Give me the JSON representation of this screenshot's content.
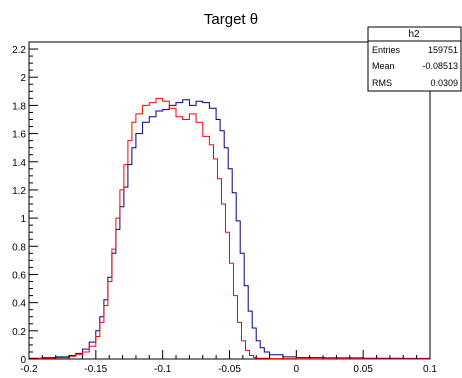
{
  "chart_data": {
    "type": "line",
    "title": "Target θ",
    "xlabel": "",
    "ylabel": "",
    "xlim": [
      -0.2,
      0.1
    ],
    "ylim": [
      0,
      2.25
    ],
    "grid": false,
    "legend": "none",
    "x_ticks": [
      -0.2,
      -0.15,
      -0.1,
      -0.05,
      0,
      0.05,
      0.1
    ],
    "x_tick_labels": [
      "-0.2",
      "-0.15",
      "-0.1",
      "-0.05",
      "0",
      "0.05",
      "0.1"
    ],
    "y_ticks": [
      0,
      0.2,
      0.4,
      0.6,
      0.8,
      1,
      1.2,
      1.4,
      1.6,
      1.8,
      2,
      2.2
    ],
    "y_tick_labels": [
      "0",
      "0.2",
      "0.4",
      "0.6",
      "0.8",
      "1",
      "1.2",
      "1.4",
      "1.6",
      "1.8",
      "2",
      "2.2"
    ],
    "stats_box": {
      "name": "h2",
      "rows": [
        {
          "label": "Entries",
          "value": "159751"
        },
        {
          "label": "Mean",
          "value": "-0.08513"
        },
        {
          "label": "RMS",
          "value": "0.0309"
        }
      ]
    },
    "series": [
      {
        "color": "#00008b",
        "x": [
          -0.2,
          -0.19,
          -0.18,
          -0.17,
          -0.165,
          -0.16,
          -0.155,
          -0.15,
          -0.147,
          -0.144,
          -0.141,
          -0.138,
          -0.135,
          -0.132,
          -0.129,
          -0.126,
          -0.123,
          -0.12,
          -0.115,
          -0.11,
          -0.105,
          -0.1,
          -0.095,
          -0.09,
          -0.085,
          -0.08,
          -0.075,
          -0.07,
          -0.065,
          -0.06,
          -0.057,
          -0.054,
          -0.051,
          -0.048,
          -0.045,
          -0.042,
          -0.039,
          -0.036,
          -0.033,
          -0.03,
          -0.027,
          -0.024,
          -0.02,
          -0.01,
          0,
          0.02,
          0.05,
          0.08,
          0.1
        ],
        "y": [
          0.005,
          0.01,
          0.015,
          0.025,
          0.04,
          0.07,
          0.12,
          0.2,
          0.3,
          0.42,
          0.58,
          0.75,
          0.92,
          1.08,
          1.22,
          1.38,
          1.5,
          1.6,
          1.68,
          1.72,
          1.76,
          1.77,
          1.8,
          1.82,
          1.84,
          1.8,
          1.83,
          1.82,
          1.78,
          1.7,
          1.62,
          1.5,
          1.35,
          1.18,
          0.98,
          0.75,
          0.52,
          0.34,
          0.22,
          0.13,
          0.08,
          0.05,
          0.03,
          0.015,
          0.01,
          0.008,
          0.006,
          0.004,
          0.003
        ]
      },
      {
        "color": "#ff0000",
        "x": [
          -0.2,
          -0.19,
          -0.18,
          -0.17,
          -0.165,
          -0.16,
          -0.155,
          -0.15,
          -0.147,
          -0.144,
          -0.141,
          -0.138,
          -0.135,
          -0.132,
          -0.129,
          -0.126,
          -0.123,
          -0.12,
          -0.115,
          -0.11,
          -0.105,
          -0.1,
          -0.095,
          -0.09,
          -0.085,
          -0.08,
          -0.075,
          -0.07,
          -0.065,
          -0.062,
          -0.059,
          -0.056,
          -0.053,
          -0.05,
          -0.047,
          -0.044,
          -0.041,
          -0.038,
          -0.035,
          -0.032,
          -0.03,
          -0.02,
          0,
          0.05,
          0.1
        ],
        "y": [
          0.003,
          0.006,
          0.01,
          0.02,
          0.03,
          0.05,
          0.09,
          0.16,
          0.26,
          0.38,
          0.55,
          0.78,
          1.0,
          1.2,
          1.38,
          1.55,
          1.68,
          1.74,
          1.8,
          1.82,
          1.85,
          1.83,
          1.78,
          1.72,
          1.7,
          1.74,
          1.68,
          1.58,
          1.52,
          1.42,
          1.28,
          1.1,
          0.9,
          0.68,
          0.45,
          0.26,
          0.13,
          0.06,
          0.025,
          0.01,
          0.005,
          0.003,
          0.002,
          0.001,
          0.001
        ]
      }
    ]
  }
}
